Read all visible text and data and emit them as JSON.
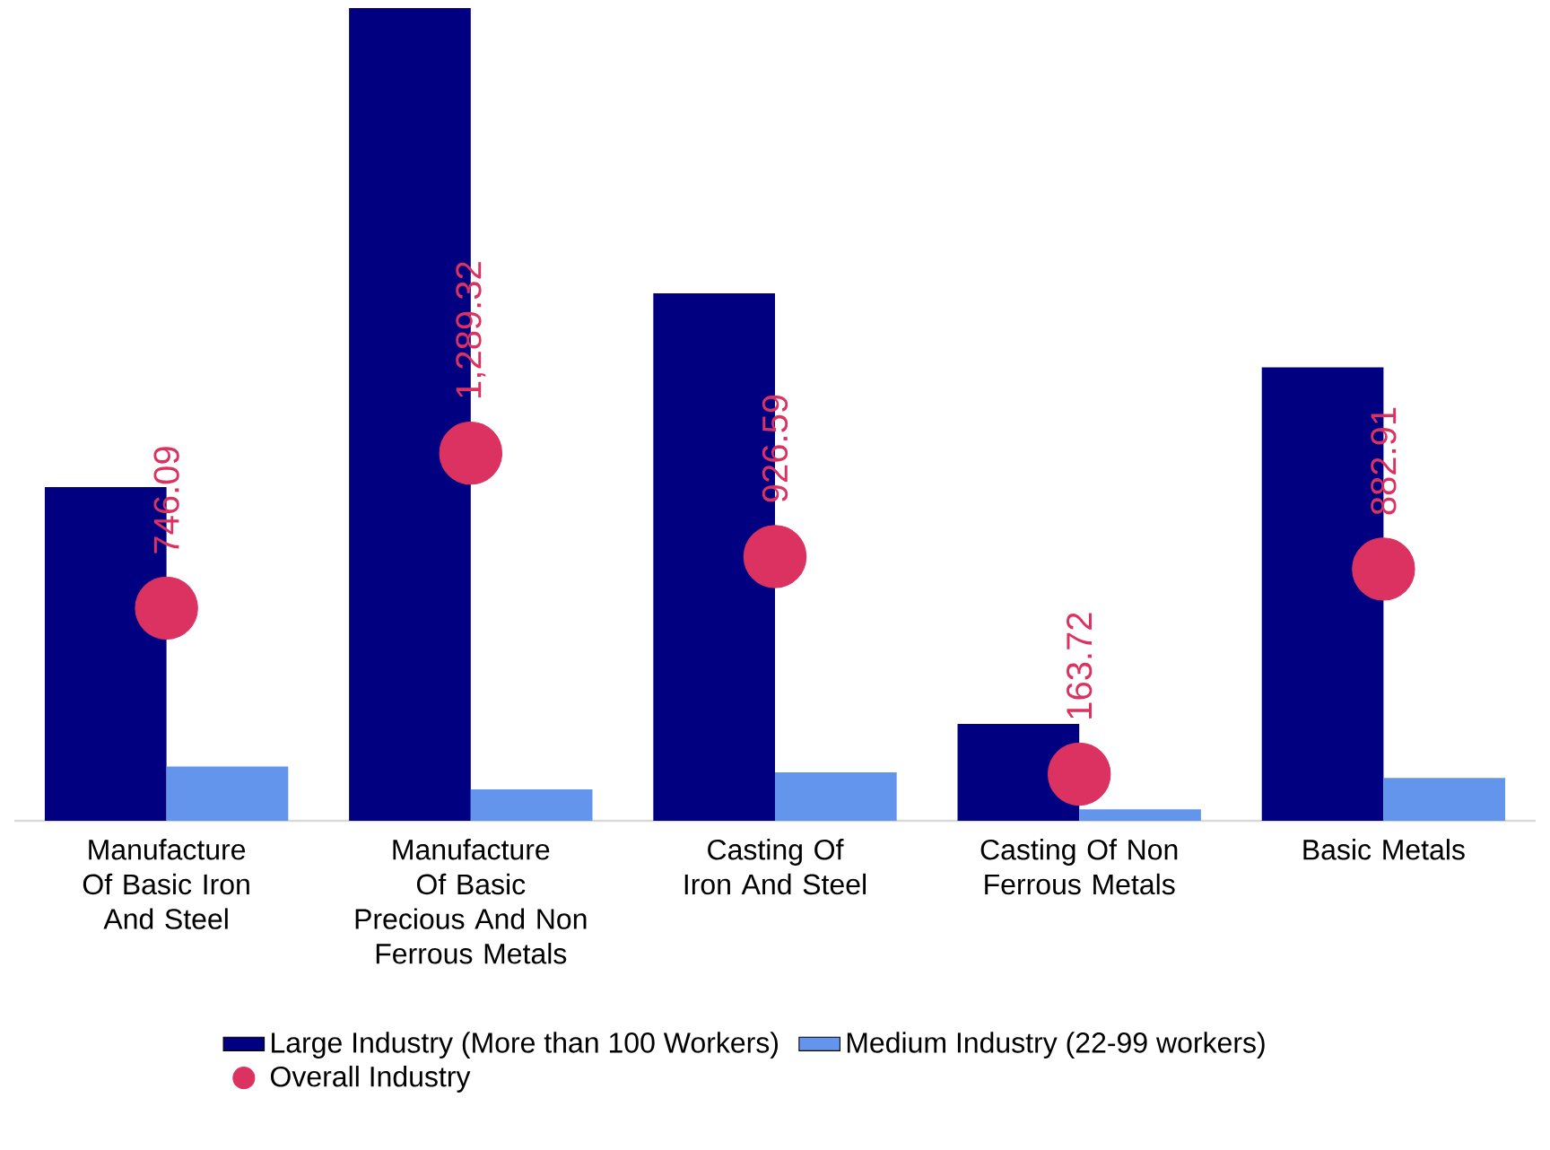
{
  "chart_data": {
    "type": "bar",
    "categories": [
      "Manufacture Of Basic Iron And Steel",
      "Manufacture Of Basic Precious And Non Ferrous Metals",
      "Casting Of Iron And Steel",
      "Casting Of Non Ferrous Metals",
      "Basic Metals"
    ],
    "series": [
      {
        "name": "Large Industry (More than 100 Workers)",
        "color": "#000080",
        "values": [
          1170,
          2850,
          1850,
          340,
          1590
        ]
      },
      {
        "name": "Medium Industry (22-99 workers)",
        "color": "#6495ED",
        "values": [
          190,
          110,
          170,
          40,
          150
        ]
      },
      {
        "name": "Overall Industry",
        "type": "scatter",
        "color": "#DC3262",
        "values": [
          746.09,
          1289.32,
          926.59,
          163.72,
          882.91
        ],
        "value_labels": [
          "746.09",
          "1,289.32",
          "926.59",
          "163.72",
          "882.91"
        ]
      }
    ],
    "tick_labels": "x",
    "grid": false,
    "legend": "bottom"
  }
}
